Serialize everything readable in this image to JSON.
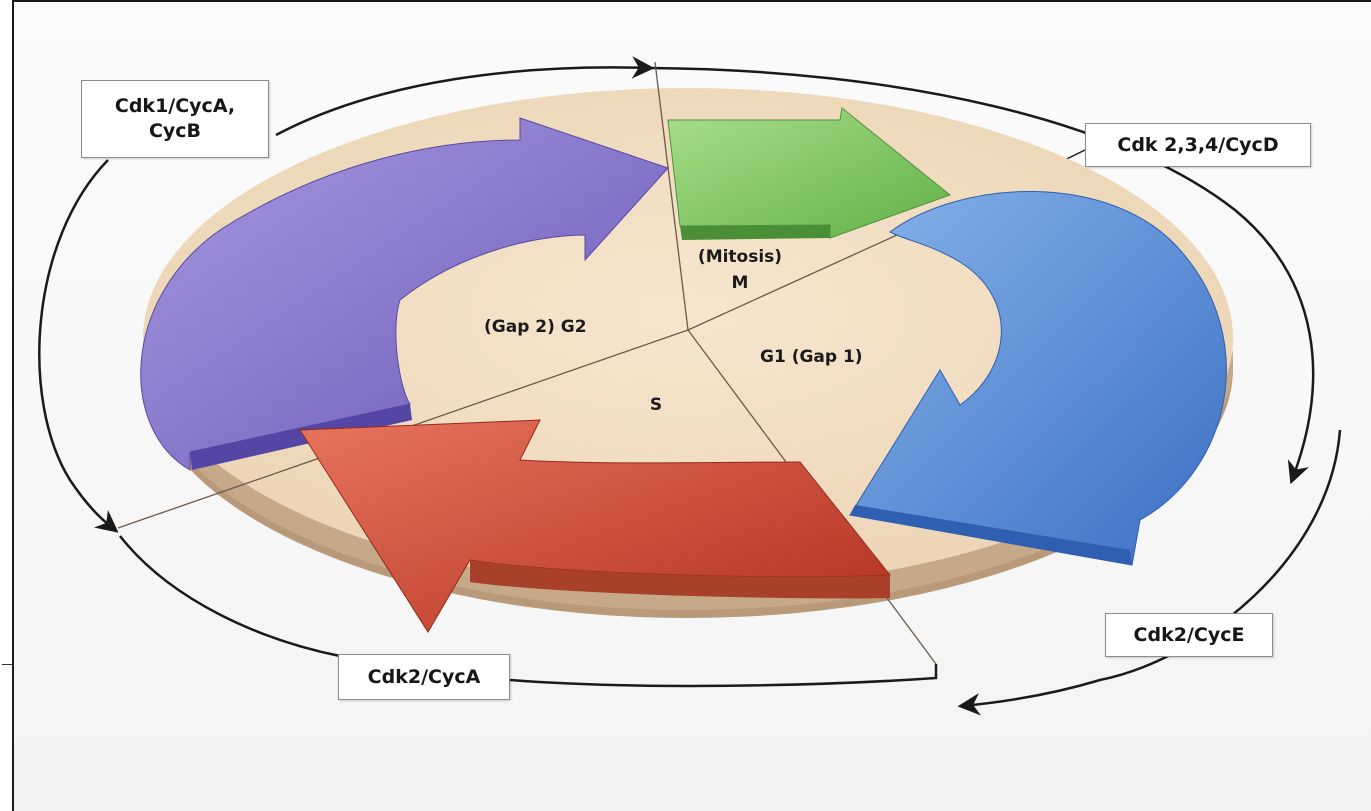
{
  "phases": {
    "mitosis": {
      "line1": "(Mitosis)",
      "line2": "M"
    },
    "g1": "G1 (Gap 1)",
    "s": "S",
    "g2": "(Gap 2) G2"
  },
  "complexes": {
    "cdk1_line1": "Cdk1/CycA,",
    "cdk1_line2": "CycB",
    "cdk234": "Cdk 2,3,4/CycD",
    "cdk2e": "Cdk2/CycE",
    "cdk2a": "Cdk2/CycA"
  },
  "colors": {
    "disc_top": "#f0dcc0",
    "disc_side": "#b09070",
    "arrow_m": "#8ccf6c",
    "arrow_g1": "#5d8ed8",
    "arrow_s": "#d24a35",
    "arrow_g2": "#8878cf"
  }
}
